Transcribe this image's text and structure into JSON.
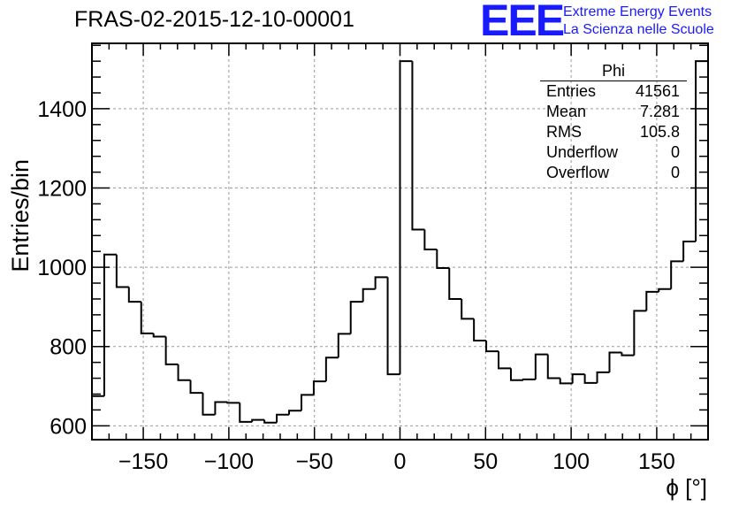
{
  "header": {
    "title": "FRAS-02-2015-12-10-00001"
  },
  "logo": {
    "text": "EEE",
    "line1": "Extreme Energy Events",
    "line2": "La Scienza nelle Scuole",
    "color": "#1a1aff"
  },
  "stats": {
    "title": "Phi",
    "rows": [
      {
        "label": "Entries",
        "value": "41561"
      },
      {
        "label": "Mean",
        "value": "7.281"
      },
      {
        "label": "RMS",
        "value": "105.8"
      },
      {
        "label": "Underflow",
        "value": "0"
      },
      {
        "label": "Overflow",
        "value": "0"
      }
    ]
  },
  "chart_data": {
    "type": "histogram",
    "title": "FRAS-02-2015-12-10-00001",
    "xlabel": "ϕ [°]",
    "ylabel": "Entries/bin",
    "xlim": [
      -180,
      180
    ],
    "ylim": [
      565,
      1565
    ],
    "grid": true,
    "bin_edges_start": -180,
    "bin_width": 7.2,
    "values": [
      675,
      1032,
      950,
      913,
      833,
      825,
      755,
      715,
      683,
      628,
      660,
      658,
      610,
      615,
      608,
      628,
      638,
      678,
      712,
      772,
      832,
      913,
      945,
      975,
      730,
      1520,
      1095,
      1045,
      998,
      920,
      870,
      815,
      788,
      745,
      715,
      717,
      780,
      720,
      707,
      730,
      708,
      735,
      785,
      778,
      890,
      938,
      945,
      1015,
      1065,
      1520
    ],
    "xticks": [
      -150,
      -100,
      -50,
      0,
      50,
      100,
      150
    ],
    "xtick_labels": [
      "−150",
      "−100",
      "−50",
      "0",
      "50",
      "100",
      "150"
    ],
    "yticks": [
      600,
      800,
      1000,
      1200,
      1400
    ],
    "ytick_labels": [
      "600",
      "800",
      "1000",
      "1200",
      "1400"
    ],
    "line_color": "#000000",
    "grid_color": "#9a9a9a"
  }
}
